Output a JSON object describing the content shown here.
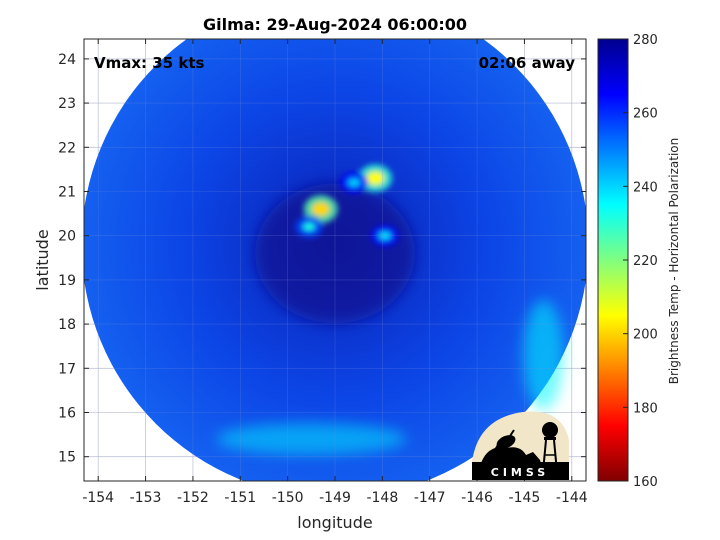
{
  "chart_data": {
    "type": "heatmap",
    "title": "Gilma: 29-Aug-2024 06:00:00",
    "xlabel": "longitude",
    "ylabel": "latitude",
    "xlim": [
      -154.3,
      -143.7
    ],
    "ylim": [
      14.45,
      24.45
    ],
    "x_ticks": [
      -154,
      -153,
      -152,
      -151,
      -150,
      -149,
      -148,
      -147,
      -146,
      -145,
      -144
    ],
    "x_tick_labels": [
      "-154",
      "-153",
      "-152",
      "-151",
      "-150",
      "-149",
      "-148",
      "-147",
      "-146",
      "-145",
      "-144"
    ],
    "y_ticks": [
      15,
      16,
      17,
      18,
      19,
      20,
      21,
      22,
      23,
      24
    ],
    "y_tick_labels": [
      "15",
      "16",
      "17",
      "18",
      "19",
      "20",
      "21",
      "22",
      "23",
      "24"
    ],
    "grid": true,
    "annotations": {
      "left": "Vmax: 35 kts",
      "right": "02:06 away"
    },
    "swath": {
      "center": [
        -149.0,
        19.8
      ],
      "radius_deg": 5.35
    },
    "colorbar": {
      "label": "Brightness Temp - Horizontal Polarization",
      "range": [
        160,
        280
      ],
      "ticks": [
        160,
        180,
        200,
        220,
        240,
        260,
        280
      ],
      "tick_labels": [
        "160",
        "180",
        "200",
        "220",
        "240",
        "260",
        "280"
      ],
      "colormap": "jet",
      "colors": [
        "#800000",
        "#ff0000",
        "#ff8000",
        "#ffff00",
        "#80ff80",
        "#00ffff",
        "#0080ff",
        "#0000ff",
        "#00008f"
      ]
    },
    "features": [
      {
        "name": "eye",
        "lon": -149.0,
        "lat": 19.6,
        "value": 268
      },
      {
        "name": "convection-1",
        "lon": -149.3,
        "lat": 20.6,
        "value": 200
      },
      {
        "name": "convection-2",
        "lon": -148.15,
        "lat": 21.3,
        "value": 205
      },
      {
        "name": "convection-3",
        "lon": -149.55,
        "lat": 20.2,
        "value": 232
      },
      {
        "name": "convection-4",
        "lon": -147.95,
        "lat": 20.0,
        "value": 238
      },
      {
        "name": "convection-5",
        "lon": -148.6,
        "lat": 21.2,
        "value": 240
      },
      {
        "name": "warm-band-south",
        "lon": -149.5,
        "lat": 15.4,
        "value": 238
      },
      {
        "name": "warm-band-east",
        "lon": -144.6,
        "lat": 17.3,
        "value": 236
      }
    ],
    "logo": {
      "text": "CIMSS",
      "icon": "cimss-logo-icon"
    }
  }
}
